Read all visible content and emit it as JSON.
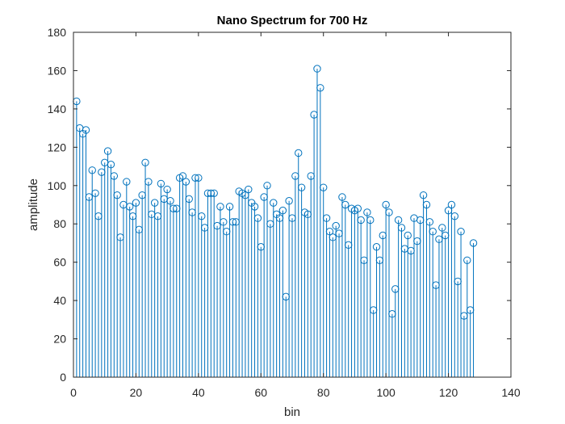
{
  "chart_data": {
    "type": "stem",
    "title": "Nano Spectrum for 700 Hz",
    "xlabel": "bin",
    "ylabel": "amplitude",
    "xlim": [
      0,
      140
    ],
    "ylim": [
      0,
      180
    ],
    "xticks": [
      0,
      20,
      40,
      60,
      80,
      100,
      120,
      140
    ],
    "yticks": [
      0,
      20,
      40,
      60,
      80,
      100,
      120,
      140,
      160,
      180
    ],
    "grid": false,
    "legend": "none",
    "color": "#0072BD",
    "x": [
      1,
      2,
      3,
      4,
      5,
      6,
      7,
      8,
      9,
      10,
      11,
      12,
      13,
      14,
      15,
      16,
      17,
      18,
      19,
      20,
      21,
      22,
      23,
      24,
      25,
      26,
      27,
      28,
      29,
      30,
      31,
      32,
      33,
      34,
      35,
      36,
      37,
      38,
      39,
      40,
      41,
      42,
      43,
      44,
      45,
      46,
      47,
      48,
      49,
      50,
      51,
      52,
      53,
      54,
      55,
      56,
      57,
      58,
      59,
      60,
      61,
      62,
      63,
      64,
      65,
      66,
      67,
      68,
      69,
      70,
      71,
      72,
      73,
      74,
      75,
      76,
      77,
      78,
      79,
      80,
      81,
      82,
      83,
      84,
      85,
      86,
      87,
      88,
      89,
      90,
      91,
      92,
      93,
      94,
      95,
      96,
      97,
      98,
      99,
      100,
      101,
      102,
      103,
      104,
      105,
      106,
      107,
      108,
      109,
      110,
      111,
      112,
      113,
      114,
      115,
      116,
      117,
      118,
      119,
      120,
      121,
      122,
      123,
      124,
      125,
      126,
      127,
      128
    ],
    "y": [
      144,
      130,
      127,
      129,
      94,
      108,
      96,
      84,
      107,
      112,
      118,
      111,
      105,
      95,
      73,
      90,
      102,
      89,
      84,
      91,
      77,
      95,
      112,
      102,
      85,
      91,
      84,
      101,
      93,
      98,
      92,
      88,
      88,
      104,
      105,
      102,
      93,
      86,
      104,
      104,
      84,
      78,
      96,
      96,
      96,
      79,
      89,
      81,
      76,
      89,
      81,
      81,
      97,
      96,
      95,
      98,
      91,
      89,
      83,
      68,
      94,
      100,
      80,
      91,
      85,
      83,
      87,
      42,
      92,
      83,
      105,
      117,
      99,
      86,
      85,
      105,
      137,
      161,
      151,
      99,
      83,
      76,
      73,
      79,
      75,
      94,
      90,
      69,
      88,
      87,
      88,
      82,
      61,
      86,
      82,
      35,
      68,
      61,
      74,
      90,
      86,
      33,
      46,
      82,
      78,
      67,
      74,
      66,
      83,
      71,
      82,
      95,
      90,
      81,
      76,
      48,
      72,
      78,
      74,
      87,
      90,
      84,
      50,
      76,
      32,
      61,
      35,
      70
    ]
  }
}
